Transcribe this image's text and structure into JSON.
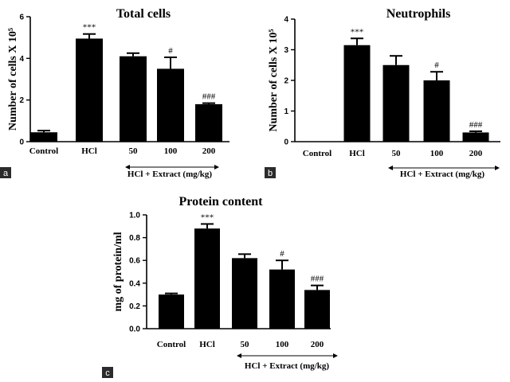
{
  "chart_data": [
    {
      "type": "bar",
      "panel_label": "a",
      "title": "Total cells",
      "ylabel": "Number of cells X 10⁵",
      "xlabel": "",
      "ylim": [
        0,
        6
      ],
      "yticks": [
        0,
        2,
        4,
        6
      ],
      "categories": [
        "Control",
        "HCl",
        "50",
        "100",
        "200"
      ],
      "values": [
        0.45,
        4.95,
        4.1,
        3.5,
        1.8
      ],
      "errors": [
        0.08,
        0.22,
        0.15,
        0.55,
        0.05
      ],
      "annotations": [
        "",
        "***",
        "",
        "#",
        "###"
      ],
      "group_label": "HCl + Extract (mg/kg)",
      "grid": false,
      "legend": "none"
    },
    {
      "type": "bar",
      "panel_label": "b",
      "title": "Neutrophils",
      "ylabel": "Number of cells X 10⁵",
      "xlabel": "",
      "ylim": [
        0,
        4
      ],
      "yticks": [
        0,
        1,
        2,
        3,
        4
      ],
      "categories": [
        "Control",
        "HCl",
        "50",
        "100",
        "200"
      ],
      "values": [
        0,
        3.15,
        2.5,
        2.0,
        0.3
      ],
      "errors": [
        0,
        0.22,
        0.3,
        0.28,
        0.04
      ],
      "annotations": [
        "",
        "***",
        "",
        "#",
        "###"
      ],
      "group_label": "HCl + Extract (mg/kg)",
      "grid": false,
      "legend": "none"
    },
    {
      "type": "bar",
      "panel_label": "c",
      "title": "Protein content",
      "ylabel": "mg of protein/ml",
      "xlabel": "",
      "ylim": [
        0,
        1.0
      ],
      "yticks": [
        0,
        0.2,
        0.4,
        0.6,
        0.8,
        1.0
      ],
      "ytick_labels": [
        "0.0",
        "0.2",
        "0.4",
        "0.6",
        "0.8",
        "1.0"
      ],
      "categories": [
        "Control",
        "HCl",
        "50",
        "100",
        "200"
      ],
      "values": [
        0.3,
        0.88,
        0.62,
        0.52,
        0.34
      ],
      "errors": [
        0.01,
        0.04,
        0.035,
        0.08,
        0.04
      ],
      "annotations": [
        "",
        "***",
        "",
        "#",
        "###"
      ],
      "group_label": "HCl + Extract (mg/kg)",
      "grid": false,
      "legend": "none"
    }
  ]
}
